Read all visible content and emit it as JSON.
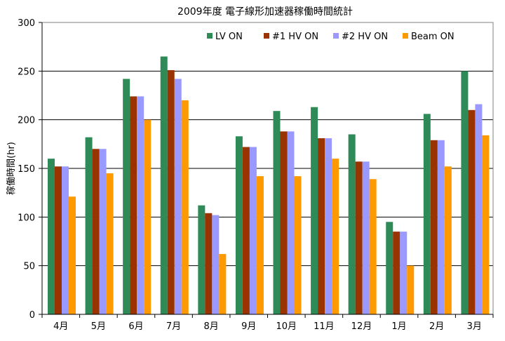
{
  "chart_data": {
    "type": "bar",
    "title": "2009年度 電子線形加速器稼働時間統計",
    "xlabel": "",
    "ylabel": "稼働時間(hr)",
    "ylim": [
      0,
      300
    ],
    "yticks": [
      0,
      50,
      100,
      150,
      200,
      250,
      300
    ],
    "grid": true,
    "legend_position": "top-right",
    "categories": [
      "4月",
      "5月",
      "6月",
      "7月",
      "8月",
      "9月",
      "10月",
      "11月",
      "12月",
      "1月",
      "2月",
      "3月"
    ],
    "series": [
      {
        "name": "LV ON",
        "color": "#2e8b57",
        "values": [
          160,
          182,
          242,
          265,
          112,
          183,
          209,
          213,
          185,
          95,
          206,
          250
        ]
      },
      {
        "name": "#1 HV ON",
        "color": "#993300",
        "values": [
          152,
          170,
          224,
          251,
          104,
          172,
          188,
          181,
          157,
          85,
          179,
          210
        ]
      },
      {
        "name": "#2 HV ON",
        "color": "#9999ff",
        "values": [
          152,
          170,
          224,
          242,
          102,
          172,
          188,
          181,
          157,
          85,
          179,
          216
        ]
      },
      {
        "name": "Beam ON",
        "color": "#ff9900",
        "values": [
          121,
          145,
          200,
          220,
          62,
          142,
          142,
          160,
          139,
          50,
          152,
          184
        ]
      }
    ]
  }
}
